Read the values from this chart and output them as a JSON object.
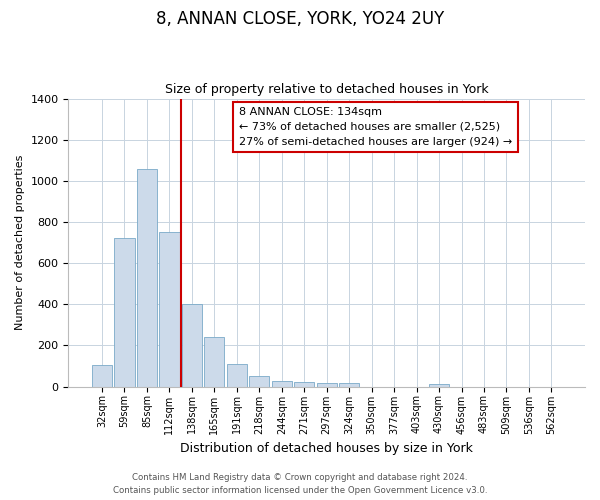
{
  "title": "8, ANNAN CLOSE, YORK, YO24 2UY",
  "subtitle": "Size of property relative to detached houses in York",
  "xlabel": "Distribution of detached houses by size in York",
  "ylabel": "Number of detached properties",
  "bar_color": "#ccdaea",
  "bar_edge_color": "#7aaac8",
  "vline_color": "#cc0000",
  "vline_x": 3.5,
  "categories": [
    "32sqm",
    "59sqm",
    "85sqm",
    "112sqm",
    "138sqm",
    "165sqm",
    "191sqm",
    "218sqm",
    "244sqm",
    "271sqm",
    "297sqm",
    "324sqm",
    "350sqm",
    "377sqm",
    "403sqm",
    "430sqm",
    "456sqm",
    "483sqm",
    "509sqm",
    "536sqm",
    "562sqm"
  ],
  "values": [
    107,
    720,
    1057,
    750,
    400,
    243,
    110,
    50,
    27,
    25,
    20,
    20,
    0,
    0,
    0,
    15,
    0,
    0,
    0,
    0,
    0
  ],
  "ylim": [
    0,
    1400
  ],
  "yticks": [
    0,
    200,
    400,
    600,
    800,
    1000,
    1200,
    1400
  ],
  "annotation_title": "8 ANNAN CLOSE: 134sqm",
  "annotation_line1": "← 73% of detached houses are smaller (2,525)",
  "annotation_line2": "27% of semi-detached houses are larger (924) →",
  "annotation_box_color": "#ffffff",
  "annotation_box_edge_color": "#cc0000",
  "footer1": "Contains HM Land Registry data © Crown copyright and database right 2024.",
  "footer2": "Contains public sector information licensed under the Open Government Licence v3.0.",
  "background_color": "#ffffff",
  "grid_color": "#c8d4e0"
}
